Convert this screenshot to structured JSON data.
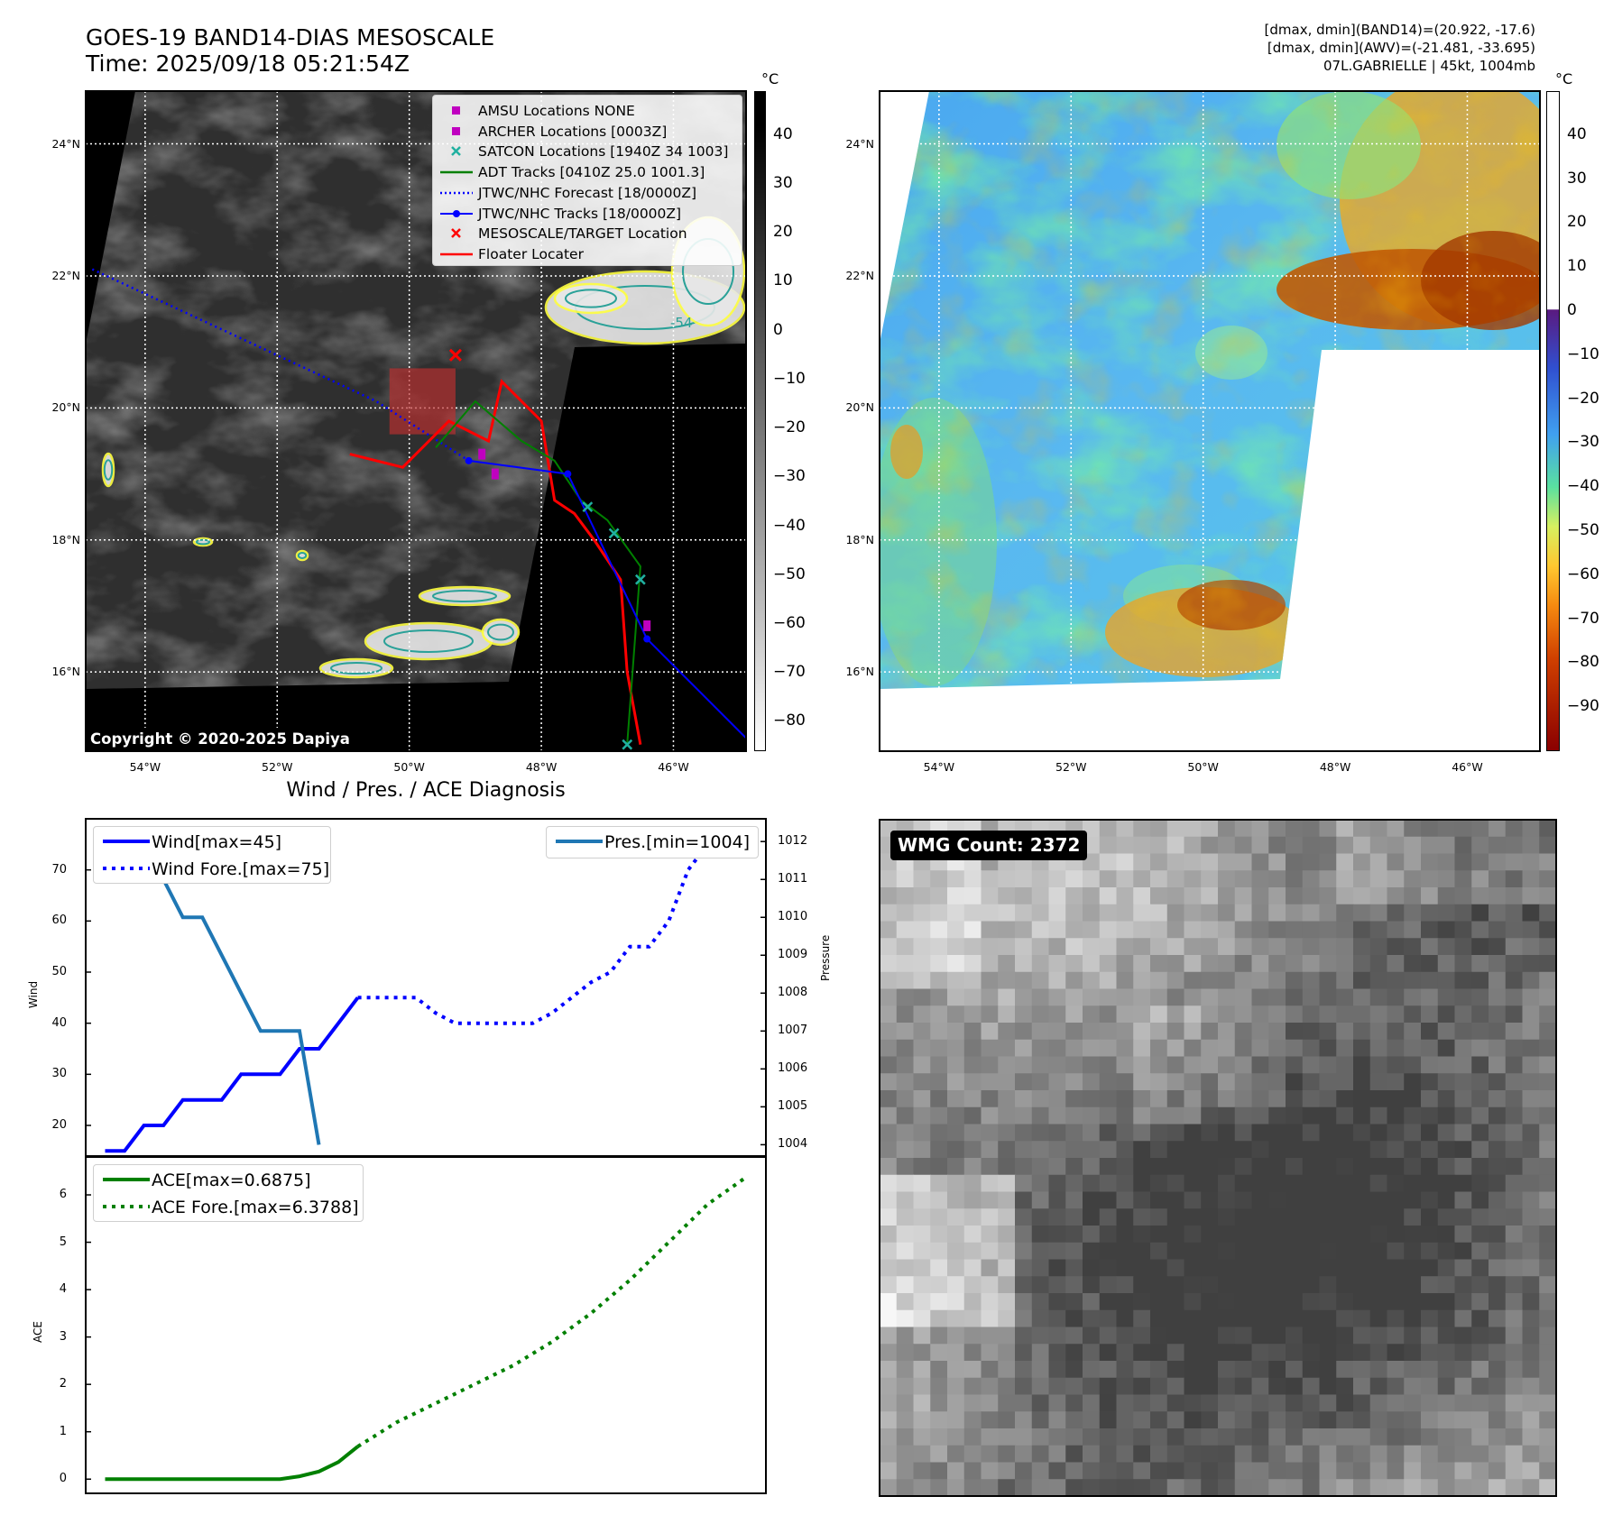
{
  "header": {
    "title_line1": "GOES-19 BAND14-DIAS MESOSCALE",
    "title_line2": "Time: 2025/09/18 05:21:54Z",
    "info_line1": "[dmax, dmin](BAND14)=(20.922, -17.6)",
    "info_line2": "[dmax, dmin](AWV)=(-21.481, -33.695)",
    "info_line3": "07L.GABRIELLE | 45kt, 1004mb"
  },
  "map_axes": {
    "lat_labels": [
      "24°N",
      "22°N",
      "20°N",
      "18°N",
      "16°N"
    ],
    "lon_labels": [
      "54°W",
      "52°W",
      "50°W",
      "48°W",
      "46°W"
    ],
    "lat_values": [
      24,
      22,
      20,
      18,
      16
    ],
    "lon_values": [
      -54,
      -52,
      -50,
      -48,
      -46
    ],
    "lon_range": [
      -54.9,
      -44.9
    ],
    "lat_range": [
      14.8,
      24.8
    ]
  },
  "ir_panel": {
    "copyright": "Copyright © 2020-2025 Dapiya",
    "contour_label": "-54",
    "colorbar": {
      "unit": "°C",
      "ticks": [
        "40",
        "30",
        "20",
        "10",
        "0",
        "−10",
        "−20",
        "−30",
        "−40",
        "−50",
        "−60",
        "−70",
        "−80"
      ],
      "tick_values": [
        40,
        30,
        20,
        10,
        0,
        -10,
        -20,
        -30,
        -40,
        -50,
        -60,
        -70,
        -80
      ],
      "range": [
        49,
        -86
      ]
    },
    "legend": [
      {
        "label": "AMSU Locations NONE",
        "color": "#c000c0",
        "marker": "square"
      },
      {
        "label": "ARCHER Locations [0003Z]",
        "color": "#c000c0",
        "marker": "square"
      },
      {
        "label": "SATCON Locations [1940Z 34 1003]",
        "color": "#20b0a0",
        "marker": "x"
      },
      {
        "label": "ADT Tracks [0410Z 25.0 1001.3]",
        "color": "#008000",
        "marker": "line"
      },
      {
        "label": "JTWC/NHC Forecast [18/0000Z]",
        "color": "#0000ff",
        "marker": "dotted"
      },
      {
        "label": "JTWC/NHC Tracks [18/0000Z]",
        "color": "#0000ff",
        "marker": "line-dot"
      },
      {
        "label": "MESOSCALE/TARGET Location",
        "color": "#ff0000",
        "marker": "x"
      },
      {
        "label": "Floater Locater",
        "color": "#ff0000",
        "marker": "line"
      }
    ],
    "forecast_track": [
      [
        -54.8,
        22.1
      ],
      [
        -50.5,
        20.1
      ],
      [
        -49.1,
        19.2
      ]
    ],
    "best_track": [
      [
        -49.1,
        19.2
      ],
      [
        -47.6,
        19.0
      ],
      [
        -46.4,
        16.5
      ],
      [
        -44.7,
        14.8
      ]
    ],
    "adt_track": [
      [
        -49.6,
        19.4
      ],
      [
        -49.0,
        20.1
      ],
      [
        -48.3,
        19.5
      ],
      [
        -47.8,
        19.2
      ],
      [
        -47.4,
        18.6
      ],
      [
        -47.0,
        18.3
      ],
      [
        -46.5,
        17.6
      ],
      [
        -46.7,
        14.9
      ]
    ],
    "floater_track": [
      [
        -50.9,
        19.3
      ],
      [
        -50.1,
        19.1
      ],
      [
        -49.4,
        19.8
      ],
      [
        -48.8,
        19.5
      ],
      [
        -48.6,
        20.4
      ],
      [
        -48.0,
        19.8
      ],
      [
        -47.8,
        18.6
      ],
      [
        -47.5,
        18.4
      ],
      [
        -47.2,
        18.0
      ],
      [
        -46.8,
        17.4
      ],
      [
        -46.7,
        16.0
      ],
      [
        -46.5,
        14.9
      ]
    ],
    "satcon_points": [
      [
        -47.3,
        18.5
      ],
      [
        -46.9,
        18.1
      ],
      [
        -46.5,
        17.4
      ],
      [
        -46.7,
        14.9
      ]
    ],
    "archer_points": [
      [
        -48.9,
        19.3
      ],
      [
        -48.7,
        19.0
      ],
      [
        -46.4,
        16.7
      ]
    ],
    "target_point": [
      -49.3,
      20.8
    ],
    "mesoscale_box": [
      -50.3,
      19.6,
      1.0,
      1.0
    ]
  },
  "awv_panel": {
    "colorbar": {
      "unit": "°C",
      "ticks": [
        "40",
        "30",
        "20",
        "10",
        "0",
        "−10",
        "−20",
        "−30",
        "−40",
        "−50",
        "−60",
        "−70",
        "−80",
        "−90"
      ],
      "tick_values": [
        40,
        30,
        20,
        10,
        0,
        -10,
        -20,
        -30,
        -40,
        -50,
        -60,
        -70,
        -80,
        -90
      ],
      "range": [
        50,
        -100
      ]
    }
  },
  "diagnosis": {
    "title": "Wind / Pres. / ACE Diagnosis",
    "wind_ylabel": "Wind",
    "pres_ylabel": "Pressure",
    "ace_ylabel": "ACE",
    "wind_yticks": [
      "70",
      "60",
      "50",
      "40",
      "30",
      "20"
    ],
    "pres_yticks": [
      "1012",
      "1011",
      "1010",
      "1009",
      "1008",
      "1007",
      "1006",
      "1005",
      "1004"
    ],
    "ace_yticks": [
      "6",
      "5",
      "4",
      "3",
      "2",
      "1",
      "0"
    ],
    "legend_wind": "Wind[max=45]",
    "legend_wind_fore": "Wind Fore.[max=75]",
    "legend_pres": "Pres.[min=1004]",
    "legend_ace": "ACE[max=0.6875]",
    "legend_ace_fore": "ACE Fore.[max=6.3788]"
  },
  "chart_data": [
    {
      "type": "line",
      "title": "Wind / Pres. / ACE Diagnosis",
      "ylabel": "Wind",
      "ylim": [
        14,
        80
      ],
      "xlim": [
        0,
        35
      ],
      "series": [
        {
          "name": "Wind[max=45]",
          "color": "#0000ff",
          "style": "solid",
          "x": [
            1,
            2,
            3,
            4,
            5,
            6,
            7,
            8,
            9,
            10,
            11,
            12,
            13,
            14
          ],
          "values": [
            15,
            15,
            20,
            20,
            25,
            25,
            25,
            30,
            30,
            30,
            35,
            35,
            40,
            45
          ]
        },
        {
          "name": "Wind Fore.[max=75]",
          "color": "#0000ff",
          "style": "dotted",
          "x": [
            14,
            15,
            16,
            17,
            18,
            19,
            20,
            21,
            22,
            23,
            24,
            25,
            26,
            27,
            28,
            29,
            30,
            31,
            32,
            33
          ],
          "values": [
            45,
            45,
            45,
            45,
            42,
            40,
            40,
            40,
            40,
            40,
            42,
            45,
            48,
            50,
            55,
            55,
            60,
            70,
            75,
            75
          ]
        }
      ]
    },
    {
      "type": "line",
      "ylabel": "Pressure",
      "ylim": [
        1003.7,
        1012.6
      ],
      "series": [
        {
          "name": "Pres.[min=1004]",
          "color": "#1f77b4",
          "style": "solid",
          "x": [
            1,
            2,
            3,
            4,
            5,
            6,
            7,
            8,
            9,
            10,
            11,
            12
          ],
          "values": [
            1012,
            1012,
            1011,
            1011,
            1010,
            1010,
            1009,
            1008,
            1007,
            1007,
            1007,
            1004
          ]
        }
      ]
    },
    {
      "type": "line",
      "ylabel": "ACE",
      "ylim": [
        -0.3,
        6.8
      ],
      "series": [
        {
          "name": "ACE[max=0.6875]",
          "color": "#008000",
          "style": "solid",
          "x": [
            1,
            2,
            3,
            4,
            5,
            6,
            7,
            8,
            9,
            10,
            11,
            12,
            13,
            14
          ],
          "values": [
            0,
            0,
            0,
            0,
            0,
            0,
            0,
            0,
            0,
            0,
            0.06,
            0.16,
            0.36,
            0.6875
          ]
        },
        {
          "name": "ACE Fore.[max=6.3788]",
          "color": "#008000",
          "style": "dotted",
          "x": [
            14,
            16,
            18,
            20,
            22,
            24,
            26,
            28,
            30,
            32,
            34
          ],
          "values": [
            0.6875,
            1.2,
            1.6,
            2.0,
            2.4,
            2.9,
            3.5,
            4.2,
            5.0,
            5.8,
            6.3788
          ]
        }
      ]
    }
  ],
  "wmg_panel": {
    "label": "WMG Count: 2372"
  }
}
